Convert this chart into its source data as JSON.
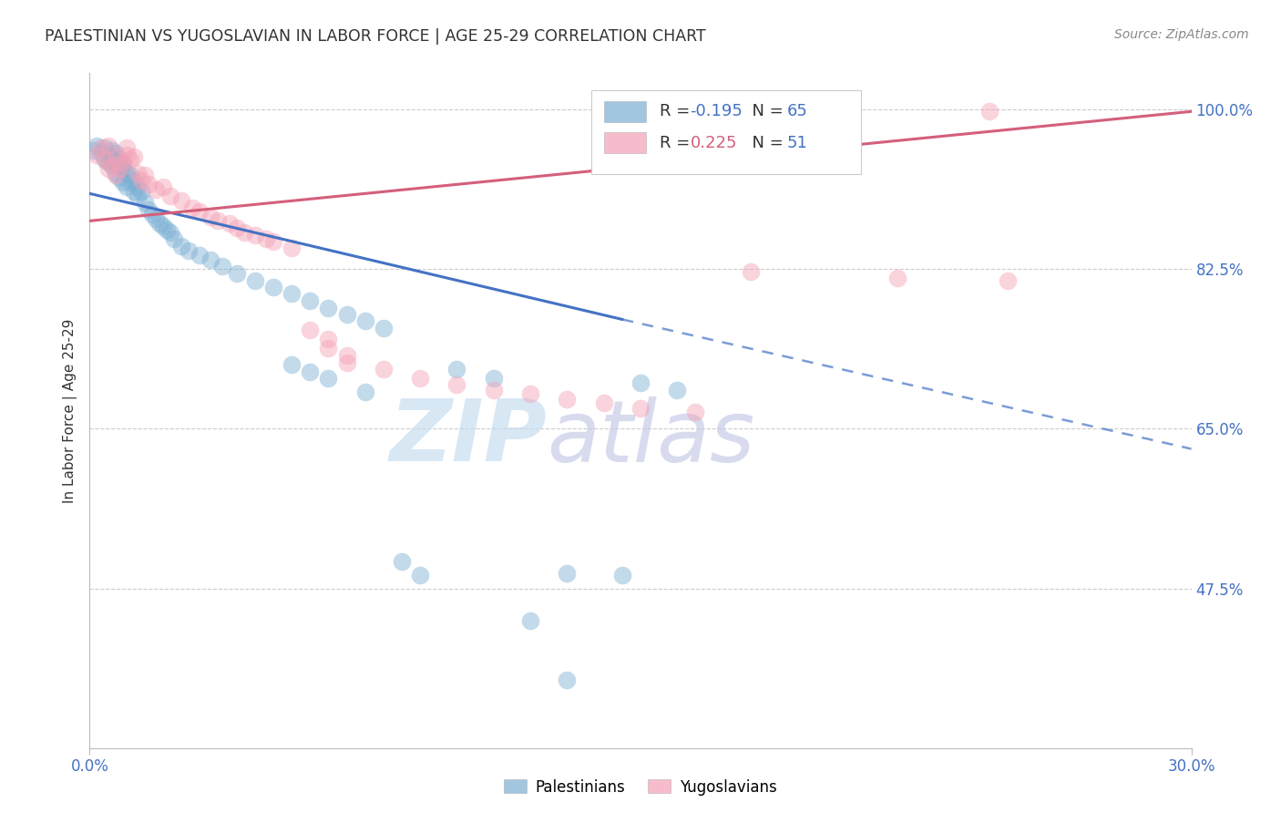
{
  "title": "PALESTINIAN VS YUGOSLAVIAN IN LABOR FORCE | AGE 25-29 CORRELATION CHART",
  "source": "Source: ZipAtlas.com",
  "ylabel": "In Labor Force | Age 25-29",
  "xlim": [
    0.0,
    0.3
  ],
  "ylim": [
    0.3,
    1.04
  ],
  "ytick_positions": [
    0.475,
    0.65,
    0.825,
    1.0
  ],
  "ytick_labels": [
    "47.5%",
    "65.0%",
    "82.5%",
    "100.0%"
  ],
  "xtick_positions": [
    0.0,
    0.3
  ],
  "xtick_labels": [
    "0.0%",
    "30.0%"
  ],
  "legend_r_blue": "-0.195",
  "legend_n_blue": "65",
  "legend_r_pink": "0.225",
  "legend_n_pink": "51",
  "blue_color": "#7bafd4",
  "pink_color": "#f4a0b5",
  "line_blue_color": "#4472c4",
  "line_pink_color": "#d45f7a",
  "grid_color": "#cccccc",
  "tick_color": "#4472c4",
  "blue_points": [
    [
      0.001,
      0.955
    ],
    [
      0.002,
      0.96
    ],
    [
      0.003,
      0.952
    ],
    [
      0.004,
      0.958
    ],
    [
      0.004,
      0.945
    ],
    [
      0.005,
      0.942
    ],
    [
      0.005,
      0.95
    ],
    [
      0.006,
      0.948
    ],
    [
      0.006,
      0.938
    ],
    [
      0.006,
      0.955
    ],
    [
      0.007,
      0.942
    ],
    [
      0.007,
      0.93
    ],
    [
      0.007,
      0.952
    ],
    [
      0.008,
      0.938
    ],
    [
      0.008,
      0.945
    ],
    [
      0.008,
      0.925
    ],
    [
      0.009,
      0.935
    ],
    [
      0.009,
      0.92
    ],
    [
      0.009,
      0.94
    ],
    [
      0.01,
      0.93
    ],
    [
      0.01,
      0.915
    ],
    [
      0.011,
      0.92
    ],
    [
      0.011,
      0.928
    ],
    [
      0.012,
      0.922
    ],
    [
      0.012,
      0.91
    ],
    [
      0.013,
      0.915
    ],
    [
      0.013,
      0.905
    ],
    [
      0.014,
      0.91
    ],
    [
      0.015,
      0.898
    ],
    [
      0.016,
      0.89
    ],
    [
      0.017,
      0.885
    ],
    [
      0.018,
      0.88
    ],
    [
      0.019,
      0.875
    ],
    [
      0.02,
      0.872
    ],
    [
      0.021,
      0.868
    ],
    [
      0.022,
      0.865
    ],
    [
      0.023,
      0.858
    ],
    [
      0.025,
      0.85
    ],
    [
      0.027,
      0.845
    ],
    [
      0.03,
      0.84
    ],
    [
      0.033,
      0.835
    ],
    [
      0.036,
      0.828
    ],
    [
      0.04,
      0.82
    ],
    [
      0.045,
      0.812
    ],
    [
      0.05,
      0.805
    ],
    [
      0.055,
      0.798
    ],
    [
      0.06,
      0.79
    ],
    [
      0.065,
      0.782
    ],
    [
      0.07,
      0.775
    ],
    [
      0.075,
      0.768
    ],
    [
      0.08,
      0.76
    ],
    [
      0.055,
      0.72
    ],
    [
      0.06,
      0.712
    ],
    [
      0.065,
      0.705
    ],
    [
      0.075,
      0.69
    ],
    [
      0.085,
      0.505
    ],
    [
      0.09,
      0.49
    ],
    [
      0.1,
      0.715
    ],
    [
      0.11,
      0.705
    ],
    [
      0.13,
      0.492
    ],
    [
      0.145,
      0.49
    ],
    [
      0.12,
      0.44
    ],
    [
      0.13,
      0.375
    ],
    [
      0.15,
      0.7
    ],
    [
      0.16,
      0.692
    ]
  ],
  "pink_points": [
    [
      0.002,
      0.95
    ],
    [
      0.003,
      0.958
    ],
    [
      0.004,
      0.945
    ],
    [
      0.005,
      0.96
    ],
    [
      0.005,
      0.935
    ],
    [
      0.006,
      0.94
    ],
    [
      0.007,
      0.948
    ],
    [
      0.007,
      0.928
    ],
    [
      0.008,
      0.935
    ],
    [
      0.009,
      0.942
    ],
    [
      0.01,
      0.95
    ],
    [
      0.01,
      0.958
    ],
    [
      0.011,
      0.945
    ],
    [
      0.012,
      0.948
    ],
    [
      0.013,
      0.93
    ],
    [
      0.014,
      0.922
    ],
    [
      0.015,
      0.928
    ],
    [
      0.016,
      0.918
    ],
    [
      0.018,
      0.912
    ],
    [
      0.02,
      0.915
    ],
    [
      0.022,
      0.905
    ],
    [
      0.025,
      0.9
    ],
    [
      0.028,
      0.892
    ],
    [
      0.03,
      0.888
    ],
    [
      0.033,
      0.882
    ],
    [
      0.035,
      0.878
    ],
    [
      0.038,
      0.875
    ],
    [
      0.04,
      0.87
    ],
    [
      0.042,
      0.865
    ],
    [
      0.045,
      0.862
    ],
    [
      0.048,
      0.858
    ],
    [
      0.05,
      0.855
    ],
    [
      0.055,
      0.848
    ],
    [
      0.06,
      0.758
    ],
    [
      0.065,
      0.748
    ],
    [
      0.065,
      0.738
    ],
    [
      0.07,
      0.73
    ],
    [
      0.07,
      0.722
    ],
    [
      0.08,
      0.715
    ],
    [
      0.09,
      0.705
    ],
    [
      0.1,
      0.698
    ],
    [
      0.11,
      0.692
    ],
    [
      0.12,
      0.688
    ],
    [
      0.13,
      0.682
    ],
    [
      0.14,
      0.678
    ],
    [
      0.15,
      0.672
    ],
    [
      0.165,
      0.668
    ],
    [
      0.18,
      0.822
    ],
    [
      0.22,
      0.815
    ],
    [
      0.245,
      0.998
    ],
    [
      0.25,
      0.812
    ]
  ],
  "blue_line_solid": [
    [
      0.0,
      0.908
    ],
    [
      0.145,
      0.77
    ]
  ],
  "blue_line_dashed": [
    [
      0.145,
      0.77
    ],
    [
      0.3,
      0.628
    ]
  ],
  "pink_line": [
    [
      0.0,
      0.878
    ],
    [
      0.3,
      0.998
    ]
  ],
  "watermark_zip_color": "#c8ddf0",
  "watermark_atlas_color": "#c8cce8"
}
